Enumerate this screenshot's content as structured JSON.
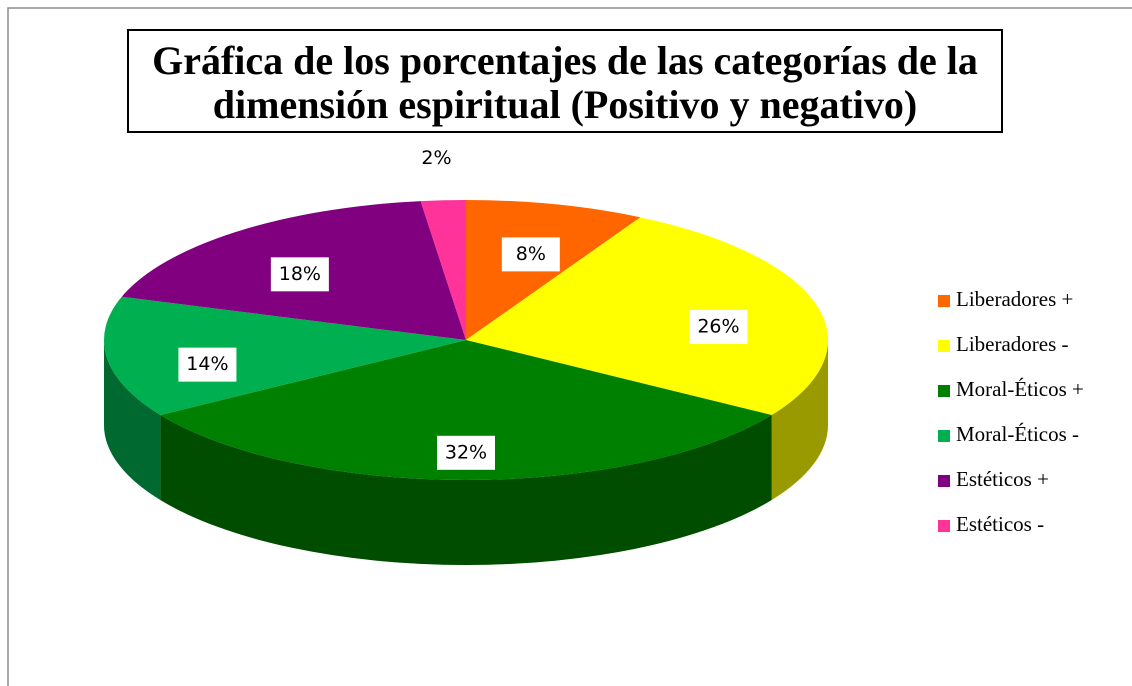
{
  "chart_data": {
    "type": "pie3d",
    "title": [
      "Gráfica de los porcentajes de las categorías de la",
      "dimensión espiritual (Positivo y negativo)"
    ],
    "categories": [
      "Liberadores +",
      "Liberadores -",
      "Moral-Éticos +",
      "Moral-Éticos -",
      "Estéticos +",
      "Estéticos -"
    ],
    "values": [
      8,
      26,
      32,
      14,
      18,
      2
    ],
    "value_labels": [
      "8%",
      "26%",
      "32%",
      "14%",
      "18%",
      "2%"
    ],
    "colors": [
      "#ff6600",
      "#ffff00",
      "#008000",
      "#00b050",
      "#800080",
      "#ff3399"
    ],
    "legend": "right"
  }
}
